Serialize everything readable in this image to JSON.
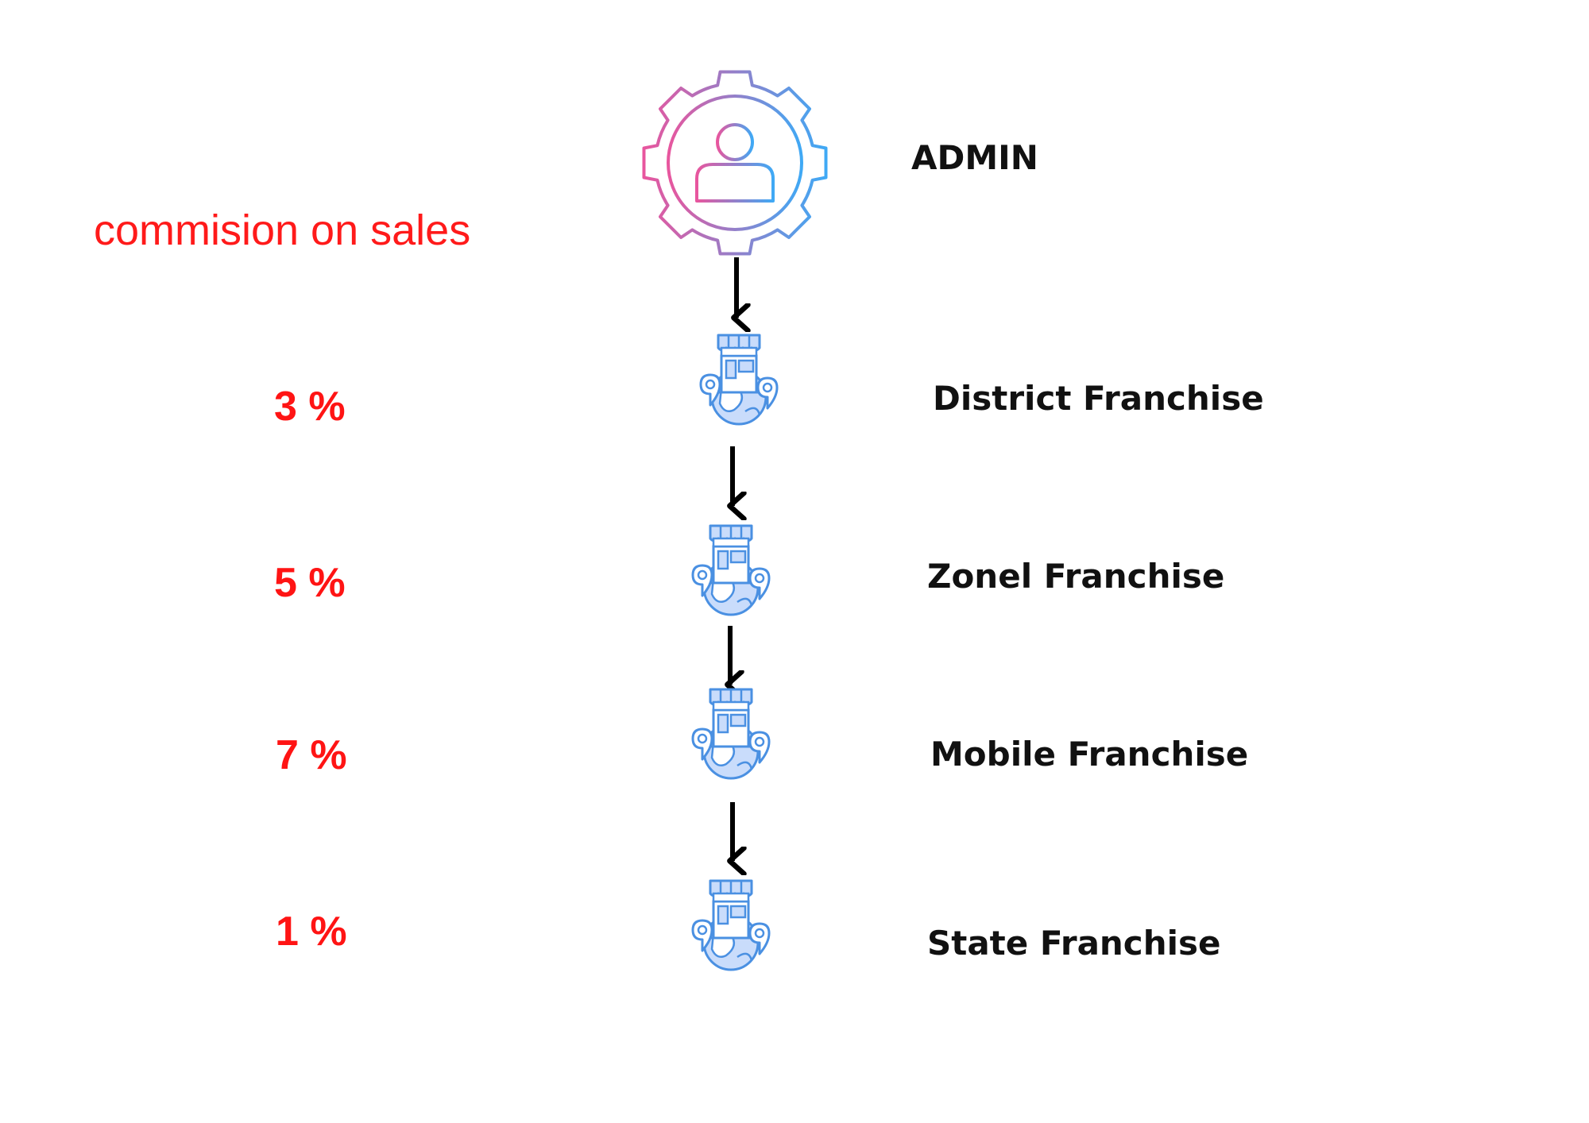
{
  "caption": "commision on sales",
  "admin": {
    "label": "ADMIN",
    "icon": "admin-gear-user-icon"
  },
  "levels": [
    {
      "label": "District Franchise",
      "commission": "3 %",
      "icon": "franchise-store-globe-icon"
    },
    {
      "label": "Zonel Franchise",
      "commission": "5 %",
      "icon": "franchise-store-globe-icon"
    },
    {
      "label": "Mobile Franchise",
      "commission": "7 %",
      "icon": "franchise-store-globe-icon"
    },
    {
      "label": "State Franchise",
      "commission": "1 %",
      "icon": "franchise-store-globe-icon"
    }
  ],
  "colors": {
    "commission_text": "#ff1414",
    "label_text": "#111111",
    "arrow": "#000000",
    "gear_gradient_start": "#e8569e",
    "gear_gradient_end": "#3fa9f5",
    "icon_stroke": "#4a90e2",
    "icon_fill": "#c9dcfb"
  }
}
